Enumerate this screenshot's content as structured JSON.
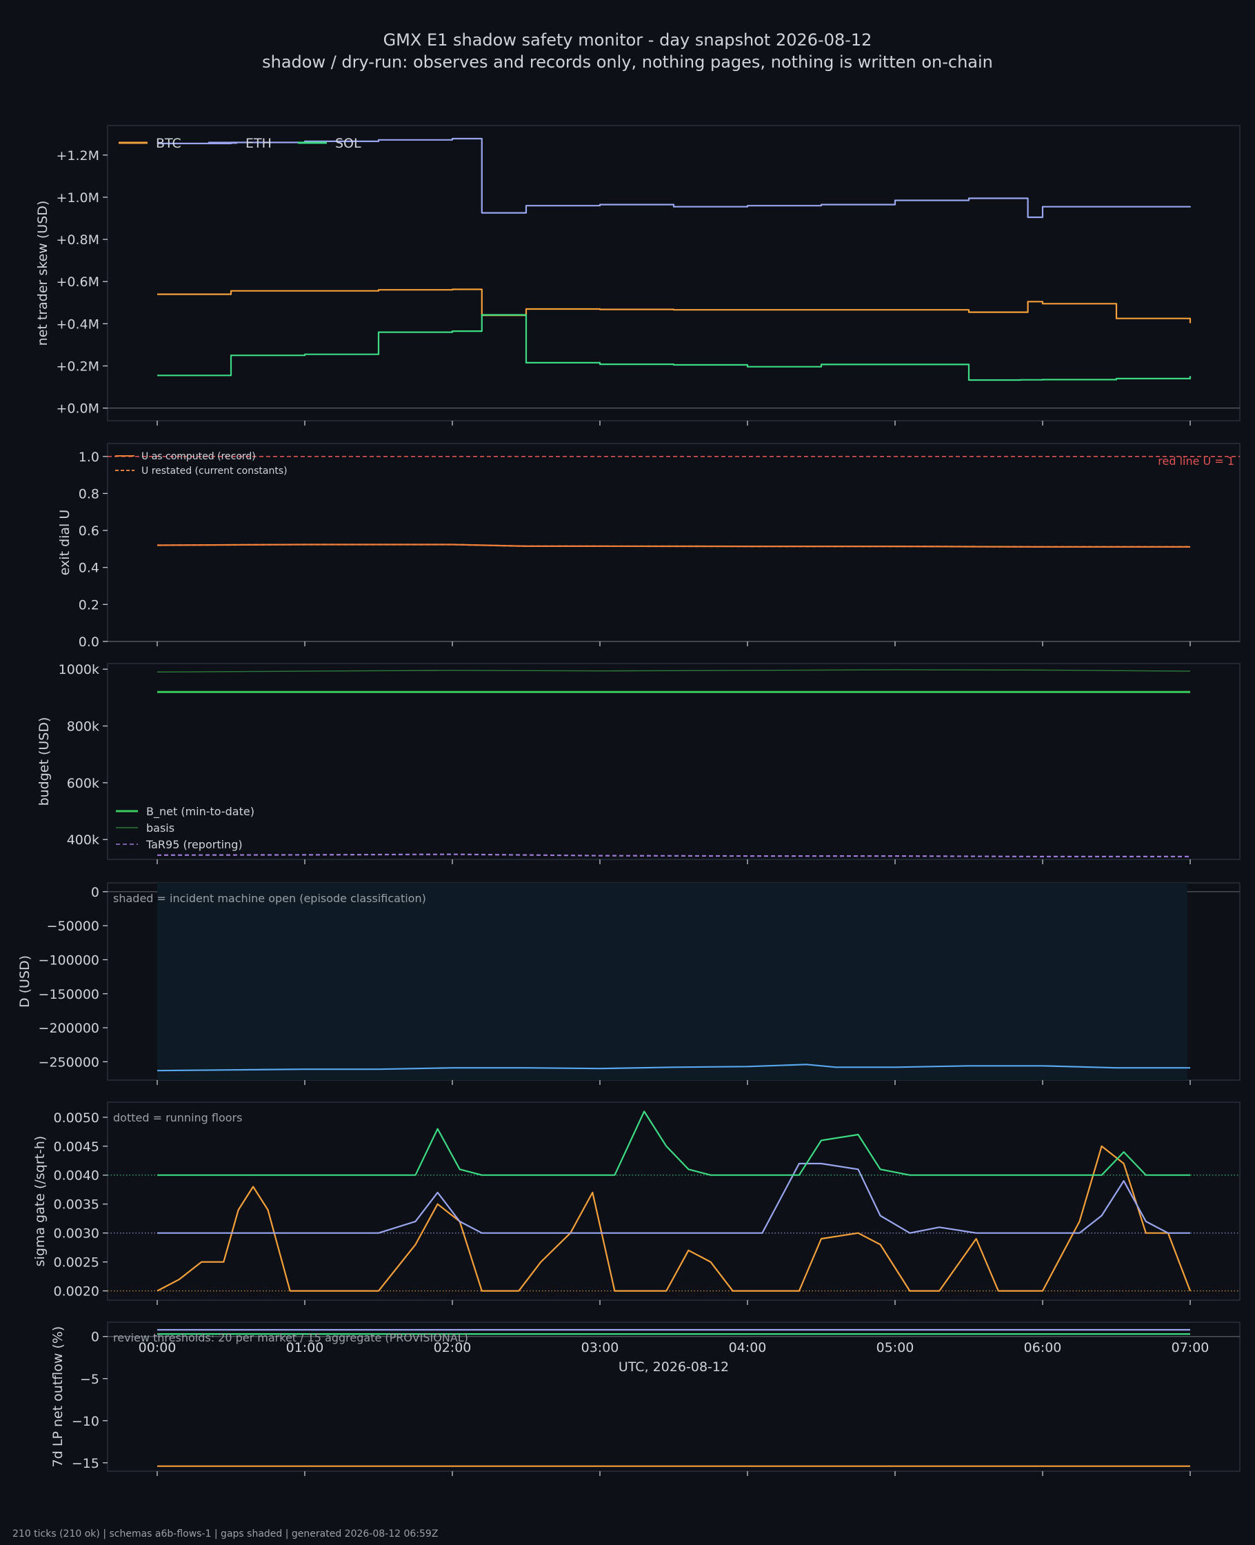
{
  "header": {
    "title": "GMX E1 shadow safety monitor - day snapshot 2026-08-12",
    "subtitle": "shadow / dry-run: observes and records only, nothing pages, nothing is written on-chain"
  },
  "footer": {
    "text": "210 ticks (210 ok) | schemas a6b-flows-1 | gaps shaded | generated 2026-08-12 06:59Z"
  },
  "x_axis": {
    "label": "UTC, 2026-08-12",
    "ticks": [
      "00:00",
      "01:00",
      "02:00",
      "03:00",
      "04:00",
      "05:00",
      "06:00",
      "07:00"
    ]
  },
  "colors": {
    "background": "#0d1117",
    "panel": "#0d1117",
    "frame": "#2a313a",
    "text": "#d0d4da",
    "btc": "#f5a03a",
    "eth": "#9aa7f0",
    "sol": "#3ddc84",
    "red": "#e05252",
    "u": "#f07f3a",
    "bnet": "#3ac95a",
    "basis": "#2f7a3a",
    "tar": "#9d7ad8",
    "d": "#5aa8f0",
    "shade": "#0e1a24"
  },
  "chart_data": [
    {
      "type": "line",
      "ylabel": "net trader skew (USD)",
      "ylim": [
        -60000,
        1340000
      ],
      "yticks": [
        0,
        200000,
        400000,
        600000,
        800000,
        1000000,
        1200000
      ],
      "ytick_labels": [
        "+0.0M",
        "+0.2M",
        "+0.4M",
        "+0.6M",
        "+0.8M",
        "+1.0M",
        "+1.2M"
      ],
      "x_hours": [
        0,
        0.5,
        1,
        1.5,
        2,
        2.2,
        2.5,
        3,
        3.5,
        4,
        4.5,
        5,
        5.5,
        5.85,
        5.9,
        6,
        6.5,
        7
      ],
      "series": [
        {
          "name": "BTC",
          "values": [
            540000,
            556000,
            556000,
            561000,
            563000,
            440000,
            470000,
            468000,
            466000,
            466000,
            466000,
            466000,
            455000,
            455000,
            505000,
            495000,
            425000,
            403000
          ]
        },
        {
          "name": "ETH",
          "values": [
            1255000,
            1260000,
            1265000,
            1272000,
            1278000,
            926000,
            960000,
            965000,
            955000,
            960000,
            965000,
            985000,
            995000,
            995000,
            905000,
            955000,
            955000,
            957000
          ]
        },
        {
          "name": "SOL",
          "values": [
            155000,
            250000,
            255000,
            360000,
            365000,
            442000,
            215000,
            208000,
            205000,
            196000,
            207000,
            207000,
            133000,
            134000,
            134000,
            135000,
            140000,
            152000
          ]
        }
      ],
      "legend": "top-left"
    },
    {
      "type": "line",
      "ylabel": "exit dial U",
      "ylim": [
        0,
        1.07
      ],
      "yticks": [
        0,
        0.2,
        0.4,
        0.6,
        0.8,
        1.0
      ],
      "ytick_labels": [
        "0.0",
        "0.2",
        "0.4",
        "0.6",
        "0.8",
        "1.0"
      ],
      "x_hours": [
        0,
        1,
        2,
        2.5,
        3,
        4,
        5,
        6,
        7
      ],
      "series": [
        {
          "name": "U as computed (record)",
          "values": [
            0.52,
            0.524,
            0.524,
            0.515,
            0.515,
            0.514,
            0.514,
            0.511,
            0.511
          ]
        },
        {
          "name": "U restated (current constants)",
          "values": [
            0.52,
            0.524,
            0.524,
            0.515,
            0.515,
            0.514,
            0.514,
            0.511,
            0.511
          ]
        }
      ],
      "reference_line": {
        "value": 1.0,
        "label": "red line U = 1"
      },
      "legend": "top-left"
    },
    {
      "type": "line",
      "ylabel": "budget (USD)",
      "ylim": [
        330000,
        1020000
      ],
      "yticks": [
        400000,
        600000,
        800000,
        1000000
      ],
      "ytick_labels": [
        "400k",
        "600k",
        "800k",
        "1000k"
      ],
      "x_hours": [
        0,
        1,
        2,
        3,
        4,
        5,
        6,
        7
      ],
      "series": [
        {
          "name": "B_net (min-to-date)",
          "values": [
            920000,
            920000,
            920000,
            920000,
            920000,
            920000,
            920000,
            920000
          ]
        },
        {
          "name": "basis",
          "values": [
            990000,
            993000,
            996000,
            994000,
            996000,
            998000,
            997000,
            993000
          ]
        },
        {
          "name": "TaR95 (reporting)",
          "values": [
            345000,
            346000,
            348000,
            343000,
            342000,
            342000,
            340000,
            340000
          ]
        }
      ],
      "legend": "bottom-left"
    },
    {
      "type": "area",
      "ylabel": "D (USD)",
      "ylim": [
        -277000,
        13000
      ],
      "yticks": [
        -250000,
        -200000,
        -150000,
        -100000,
        -50000,
        0
      ],
      "ytick_labels": [
        "−250000",
        "−200000",
        "−150000",
        "−100000",
        "−50000",
        "0"
      ],
      "annotation": "shaded = incident machine open (episode classification)",
      "shaded_span_hours": [
        0,
        6.98
      ],
      "x_hours": [
        0,
        0.5,
        1,
        1.5,
        2,
        2.5,
        3,
        3.5,
        4,
        4.4,
        4.6,
        5,
        5.5,
        6,
        6.5,
        7
      ],
      "series": [
        {
          "name": "D",
          "values": [
            -263000,
            -262000,
            -261000,
            -261000,
            -259000,
            -259000,
            -260000,
            -258000,
            -257000,
            -254000,
            -258000,
            -258000,
            -256000,
            -256000,
            -259000,
            -259000
          ]
        }
      ]
    },
    {
      "type": "line",
      "ylabel": "sigma gate (/sqrt-h)",
      "ylim": [
        0.00184,
        0.00526
      ],
      "yticks": [
        0.002,
        0.0025,
        0.003,
        0.0035,
        0.004,
        0.0045,
        0.005
      ],
      "ytick_labels": [
        "0.0020",
        "0.0025",
        "0.0030",
        "0.0035",
        "0.0040",
        "0.0045",
        "0.0050"
      ],
      "annotation": "dotted = running floors",
      "floors": {
        "BTC": 0.002,
        "ETH": 0.003,
        "SOL": 0.004
      },
      "x_hours": [
        0,
        0.15,
        0.3,
        0.45,
        0.55,
        0.65,
        0.75,
        0.9,
        1.2,
        1.5,
        1.75,
        1.9,
        2.05,
        2.2,
        2.45,
        2.6,
        2.8,
        2.95,
        3.1,
        3.3,
        3.45,
        3.6,
        3.75,
        3.9,
        4.1,
        4.35,
        4.5,
        4.75,
        4.9,
        5.1,
        5.3,
        5.55,
        5.7,
        6.0,
        6.25,
        6.4,
        6.55,
        6.7,
        6.85,
        7.0
      ],
      "series": [
        {
          "name": "BTC",
          "values": [
            0.002,
            0.0022,
            0.0025,
            0.0025,
            0.0034,
            0.0038,
            0.0034,
            0.002,
            0.002,
            0.002,
            0.0028,
            0.0035,
            0.0032,
            0.002,
            0.002,
            0.0025,
            0.003,
            0.0037,
            0.002,
            0.002,
            0.002,
            0.0027,
            0.0025,
            0.002,
            0.002,
            0.002,
            0.0029,
            0.003,
            0.0028,
            0.002,
            0.002,
            0.0029,
            0.002,
            0.002,
            0.0032,
            0.0045,
            0.0042,
            0.003,
            0.003,
            0.002
          ]
        },
        {
          "name": "ETH",
          "values": [
            0.003,
            0.003,
            0.003,
            0.003,
            0.003,
            0.003,
            0.003,
            0.003,
            0.003,
            0.003,
            0.0032,
            0.0037,
            0.0032,
            0.003,
            0.003,
            0.003,
            0.003,
            0.003,
            0.003,
            0.003,
            0.003,
            0.003,
            0.003,
            0.003,
            0.003,
            0.0042,
            0.0042,
            0.0041,
            0.0033,
            0.003,
            0.0031,
            0.003,
            0.003,
            0.003,
            0.003,
            0.0033,
            0.0039,
            0.0032,
            0.003,
            0.003
          ]
        },
        {
          "name": "SOL",
          "values": [
            0.004,
            0.004,
            0.004,
            0.004,
            0.004,
            0.004,
            0.004,
            0.004,
            0.004,
            0.004,
            0.004,
            0.0048,
            0.0041,
            0.004,
            0.004,
            0.004,
            0.004,
            0.004,
            0.004,
            0.0051,
            0.0045,
            0.0041,
            0.004,
            0.004,
            0.004,
            0.004,
            0.0046,
            0.0047,
            0.0041,
            0.004,
            0.004,
            0.004,
            0.004,
            0.004,
            0.004,
            0.004,
            0.0044,
            0.004,
            0.004,
            0.004
          ]
        }
      ]
    },
    {
      "type": "line",
      "ylabel": "7d LP net outflow (%)",
      "ylim": [
        -16,
        1.7
      ],
      "yticks": [
        -15,
        -10,
        -5,
        0
      ],
      "ytick_labels": [
        "−15",
        "−10",
        "−5",
        "0"
      ],
      "annotation": "review thresholds: 20 per market / 15 aggregate (PROVISIONAL)",
      "x_hours": [
        0,
        7
      ],
      "series": [
        {
          "name": "BTC",
          "values": [
            -15.4,
            -15.4
          ]
        },
        {
          "name": "ETH",
          "values": [
            0.8,
            0.8
          ]
        },
        {
          "name": "SOL",
          "values": [
            0.3,
            0.3
          ]
        }
      ]
    }
  ]
}
